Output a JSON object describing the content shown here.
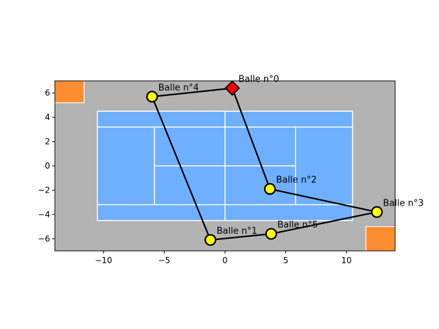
{
  "chart_data": {
    "type": "scatter",
    "title": "",
    "xlabel": "",
    "ylabel": "",
    "xlim": [
      -14,
      14
    ],
    "ylim": [
      -7,
      7
    ],
    "x_ticks": [
      -10,
      -5,
      0,
      5,
      10
    ],
    "y_ticks": [
      -6,
      -4,
      -2,
      0,
      2,
      4,
      6
    ],
    "x_tick_labels": [
      "−10",
      "−5",
      "0",
      "5",
      "10"
    ],
    "y_tick_labels": [
      "−6",
      "−4",
      "−2",
      "0",
      "2",
      "4",
      "6"
    ],
    "grid": false,
    "colors": {
      "ground": "#b3b3b3",
      "court": "#6fafff",
      "court_lines": "#ffffff",
      "corner_boxes": "#ff8c2e",
      "path": "#000000",
      "ball": "#ffff00",
      "start_marker": "#ff0000"
    },
    "court": {
      "x_range": [
        -10.5,
        10.5
      ],
      "y_range": [
        -4.5,
        4.5
      ],
      "singles_y": [
        -3.2,
        3.2
      ],
      "service_x": [
        -5.8,
        5.8
      ],
      "net_x": 0
    },
    "corner_boxes": [
      {
        "x": [
          -14,
          -11.6
        ],
        "y": [
          5.2,
          7
        ]
      },
      {
        "x": [
          11.6,
          14
        ],
        "y": [
          -7,
          -5
        ]
      }
    ],
    "balls": [
      {
        "label": "Balle n°0",
        "x": 0.6,
        "y": 6.4,
        "marker": "diamond"
      },
      {
        "label": "Balle n°1",
        "x": -1.2,
        "y": -6.1,
        "marker": "circle"
      },
      {
        "label": "Balle n°2",
        "x": 3.7,
        "y": -1.9,
        "marker": "circle"
      },
      {
        "label": "Balle n°3",
        "x": 12.5,
        "y": -3.8,
        "marker": "circle"
      },
      {
        "label": "Balle n°4",
        "x": -6.0,
        "y": 5.7,
        "marker": "circle"
      },
      {
        "label": "Balle n°5",
        "x": 3.8,
        "y": -5.6,
        "marker": "circle"
      }
    ],
    "path_order": [
      0,
      2,
      3,
      5,
      1,
      4,
      0
    ]
  }
}
